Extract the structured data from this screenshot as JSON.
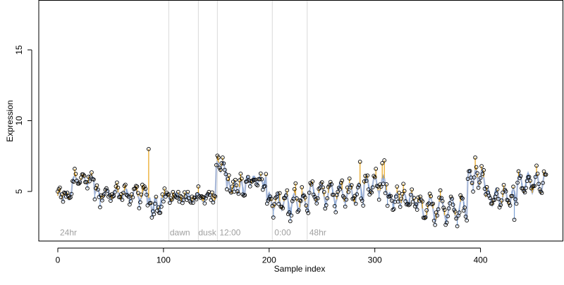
{
  "chart_data": {
    "type": "scatter",
    "xlabel": "Sample index",
    "ylabel": "Expression",
    "xlim": [
      -18,
      478
    ],
    "ylim": [
      1.5,
      18.5
    ],
    "x_ticks": [
      0,
      100,
      200,
      300,
      400
    ],
    "y_ticks": [
      5,
      10,
      15
    ],
    "grid": false,
    "legend": "none",
    "sample_count": 463,
    "phase_lines": [
      105,
      133,
      151,
      203,
      236
    ],
    "phase_labels": [
      {
        "text": "24hr",
        "x": 2
      },
      {
        "text": "dawn",
        "x": 106
      },
      {
        "text": "dusk",
        "x": 133
      },
      {
        "text": "12:00",
        "x": 153
      },
      {
        "text": "0:00",
        "x": 205
      },
      {
        "text": "48hr",
        "x": 238
      }
    ],
    "phase_label_y": 2.1,
    "colors": {
      "points_stroke": "#000000",
      "above_fit": "#e8a317",
      "below_fit": "#7b9fd4",
      "fit_line": "#a8b8d8",
      "phase_line": "#d9d9d9",
      "phase_text": "#a0a0a0"
    },
    "segments": [
      {
        "x0": 0,
        "x1": 14,
        "base": 4.7,
        "amp": 0.3,
        "period": 6,
        "noise": 0.6
      },
      {
        "x0": 14,
        "x1": 35,
        "base": 5.8,
        "amp": 0.3,
        "period": 8,
        "noise": 0.4
      },
      {
        "x0": 35,
        "x1": 85,
        "base": 4.8,
        "amp": 0.4,
        "period": 9,
        "noise": 0.6
      },
      {
        "x0": 85,
        "x1": 100,
        "base": 4.1,
        "amp": 0.5,
        "period": 6,
        "noise": 0.7
      },
      {
        "x0": 100,
        "x1": 150,
        "base": 4.6,
        "amp": 0.3,
        "period": 10,
        "noise": 0.5
      },
      {
        "x0": 150,
        "x1": 160,
        "base": 6.8,
        "amp": 0.4,
        "period": 5,
        "noise": 0.4
      },
      {
        "x0": 160,
        "x1": 178,
        "base": 5.3,
        "amp": 0.5,
        "period": 6,
        "noise": 0.6
      },
      {
        "x0": 178,
        "x1": 198,
        "base": 5.8,
        "amp": 0.3,
        "period": 6,
        "noise": 0.4
      },
      {
        "x0": 198,
        "x1": 238,
        "base": 4.3,
        "amp": 0.6,
        "period": 8,
        "noise": 0.7
      },
      {
        "x0": 238,
        "x1": 290,
        "base": 4.9,
        "amp": 0.7,
        "period": 9,
        "noise": 0.6
      },
      {
        "x0": 290,
        "x1": 312,
        "base": 5.5,
        "amp": 0.6,
        "period": 8,
        "noise": 0.7
      },
      {
        "x0": 312,
        "x1": 340,
        "base": 4.5,
        "amp": 0.4,
        "period": 7,
        "noise": 0.6
      },
      {
        "x0": 340,
        "x1": 388,
        "base": 3.8,
        "amp": 0.8,
        "period": 10,
        "noise": 0.5
      },
      {
        "x0": 388,
        "x1": 405,
        "base": 6.0,
        "amp": 0.6,
        "period": 6,
        "noise": 0.4
      },
      {
        "x0": 405,
        "x1": 435,
        "base": 4.6,
        "amp": 0.6,
        "period": 8,
        "noise": 0.5
      },
      {
        "x0": 435,
        "x1": 463,
        "base": 5.6,
        "amp": 0.7,
        "period": 8,
        "noise": 0.5
      }
    ],
    "outliers": [
      {
        "x": 86,
        "y": 8.0
      },
      {
        "x": 152,
        "y": 7.4
      },
      {
        "x": 286,
        "y": 7.1
      },
      {
        "x": 307,
        "y": 7.0
      },
      {
        "x": 309,
        "y": 7.2
      },
      {
        "x": 395,
        "y": 7.4
      },
      {
        "x": 16,
        "y": 6.6
      },
      {
        "x": 432,
        "y": 3.0
      },
      {
        "x": 220,
        "y": 2.9
      }
    ]
  }
}
